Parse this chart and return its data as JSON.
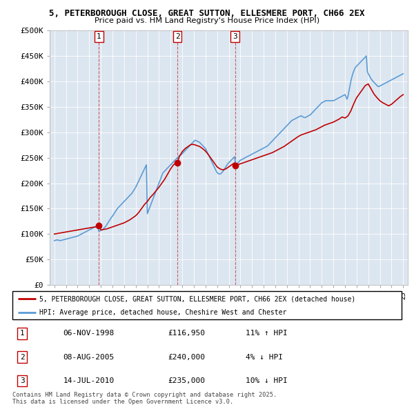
{
  "title_line1": "5, PETERBOROUGH CLOSE, GREAT SUTTON, ELLESMERE PORT, CH66 2EX",
  "title_line2": "Price paid vs. HM Land Registry's House Price Index (HPI)",
  "legend_line1": "5, PETERBOROUGH CLOSE, GREAT SUTTON, ELLESMERE PORT, CH66 2EX (detached house)",
  "legend_line2": "HPI: Average price, detached house, Cheshire West and Chester",
  "footer": "Contains HM Land Registry data © Crown copyright and database right 2025.\nThis data is licensed under the Open Government Licence v3.0.",
  "sale_table": [
    {
      "num": "1",
      "date": "06-NOV-1998",
      "price": "£116,950",
      "hpi": "11% ↑ HPI"
    },
    {
      "num": "2",
      "date": "08-AUG-2005",
      "price": "£240,000",
      "hpi": "4% ↓ HPI"
    },
    {
      "num": "3",
      "date": "14-JUL-2010",
      "price": "£235,000",
      "hpi": "10% ↓ HPI"
    }
  ],
  "hpi_color": "#5b9bd5",
  "price_color": "#c00000",
  "chart_bg": "#dce6f0",
  "ylim": [
    0,
    500000
  ],
  "yticks": [
    0,
    50000,
    100000,
    150000,
    200000,
    250000,
    300000,
    350000,
    400000,
    450000,
    500000
  ],
  "ytick_labels": [
    "£0",
    "£50K",
    "£100K",
    "£150K",
    "£200K",
    "£250K",
    "£300K",
    "£350K",
    "£400K",
    "£450K",
    "£500K"
  ],
  "sale_years": [
    1998.836,
    2005.583,
    2010.536
  ],
  "sale_prices": [
    116950,
    240000,
    235000
  ],
  "hpi_years": [
    1995.0,
    1995.083,
    1995.167,
    1995.25,
    1995.333,
    1995.417,
    1995.5,
    1995.583,
    1995.667,
    1995.75,
    1995.833,
    1995.917,
    1996.0,
    1996.083,
    1996.167,
    1996.25,
    1996.333,
    1996.417,
    1996.5,
    1996.583,
    1996.667,
    1996.75,
    1996.833,
    1996.917,
    1997.0,
    1997.083,
    1997.167,
    1997.25,
    1997.333,
    1997.417,
    1997.5,
    1997.583,
    1997.667,
    1997.75,
    1997.833,
    1997.917,
    1998.0,
    1998.083,
    1998.167,
    1998.25,
    1998.333,
    1998.417,
    1998.5,
    1998.583,
    1998.667,
    1998.75,
    1998.833,
    1998.917,
    1999.0,
    1999.083,
    1999.167,
    1999.25,
    1999.333,
    1999.417,
    1999.5,
    1999.583,
    1999.667,
    1999.75,
    1999.833,
    1999.917,
    2000.0,
    2000.083,
    2000.167,
    2000.25,
    2000.333,
    2000.417,
    2000.5,
    2000.583,
    2000.667,
    2000.75,
    2000.833,
    2000.917,
    2001.0,
    2001.083,
    2001.167,
    2001.25,
    2001.333,
    2001.417,
    2001.5,
    2001.583,
    2001.667,
    2001.75,
    2001.833,
    2001.917,
    2002.0,
    2002.083,
    2002.167,
    2002.25,
    2002.333,
    2002.417,
    2002.5,
    2002.583,
    2002.667,
    2002.75,
    2002.833,
    2002.917,
    2003.0,
    2003.083,
    2003.167,
    2003.25,
    2003.333,
    2003.417,
    2003.5,
    2003.583,
    2003.667,
    2003.75,
    2003.833,
    2003.917,
    2004.0,
    2004.083,
    2004.167,
    2004.25,
    2004.333,
    2004.417,
    2004.5,
    2004.583,
    2004.667,
    2004.75,
    2004.833,
    2004.917,
    2005.0,
    2005.083,
    2005.167,
    2005.25,
    2005.333,
    2005.417,
    2005.5,
    2005.583,
    2005.667,
    2005.75,
    2005.833,
    2005.917,
    2006.0,
    2006.083,
    2006.167,
    2006.25,
    2006.333,
    2006.417,
    2006.5,
    2006.583,
    2006.667,
    2006.75,
    2006.833,
    2006.917,
    2007.0,
    2007.083,
    2007.167,
    2007.25,
    2007.333,
    2007.417,
    2007.5,
    2007.583,
    2007.667,
    2007.75,
    2007.833,
    2007.917,
    2008.0,
    2008.083,
    2008.167,
    2008.25,
    2008.333,
    2008.417,
    2008.5,
    2008.583,
    2008.667,
    2008.75,
    2008.833,
    2008.917,
    2009.0,
    2009.083,
    2009.167,
    2009.25,
    2009.333,
    2009.417,
    2009.5,
    2009.583,
    2009.667,
    2009.75,
    2009.833,
    2009.917,
    2010.0,
    2010.083,
    2010.167,
    2010.25,
    2010.333,
    2010.417,
    2010.5,
    2010.583,
    2010.667,
    2010.75,
    2010.833,
    2010.917,
    2011.0,
    2011.083,
    2011.167,
    2011.25,
    2011.333,
    2011.417,
    2011.5,
    2011.583,
    2011.667,
    2011.75,
    2011.833,
    2011.917,
    2012.0,
    2012.083,
    2012.167,
    2012.25,
    2012.333,
    2012.417,
    2012.5,
    2012.583,
    2012.667,
    2012.75,
    2012.833,
    2012.917,
    2013.0,
    2013.083,
    2013.167,
    2013.25,
    2013.333,
    2013.417,
    2013.5,
    2013.583,
    2013.667,
    2013.75,
    2013.833,
    2013.917,
    2014.0,
    2014.083,
    2014.167,
    2014.25,
    2014.333,
    2014.417,
    2014.5,
    2014.583,
    2014.667,
    2014.75,
    2014.833,
    2014.917,
    2015.0,
    2015.083,
    2015.167,
    2015.25,
    2015.333,
    2015.417,
    2015.5,
    2015.583,
    2015.667,
    2015.75,
    2015.833,
    2015.917,
    2016.0,
    2016.083,
    2016.167,
    2016.25,
    2016.333,
    2016.417,
    2016.5,
    2016.583,
    2016.667,
    2016.75,
    2016.833,
    2016.917,
    2017.0,
    2017.083,
    2017.167,
    2017.25,
    2017.333,
    2017.417,
    2017.5,
    2017.583,
    2017.667,
    2017.75,
    2017.833,
    2017.917,
    2018.0,
    2018.083,
    2018.167,
    2018.25,
    2018.333,
    2018.417,
    2018.5,
    2018.583,
    2018.667,
    2018.75,
    2018.833,
    2018.917,
    2019.0,
    2019.083,
    2019.167,
    2019.25,
    2019.333,
    2019.417,
    2019.5,
    2019.583,
    2019.667,
    2019.75,
    2019.833,
    2019.917,
    2020.0,
    2020.083,
    2020.167,
    2020.25,
    2020.333,
    2020.417,
    2020.5,
    2020.583,
    2020.667,
    2020.75,
    2020.833,
    2020.917,
    2021.0,
    2021.083,
    2021.167,
    2021.25,
    2021.333,
    2021.417,
    2021.5,
    2021.583,
    2021.667,
    2021.75,
    2021.833,
    2021.917,
    2022.0,
    2022.083,
    2022.167,
    2022.25,
    2022.333,
    2022.417,
    2022.5,
    2022.583,
    2022.667,
    2022.75,
    2022.833,
    2022.917,
    2023.0,
    2023.083,
    2023.167,
    2023.25,
    2023.333,
    2023.417,
    2023.5,
    2023.583,
    2023.667,
    2023.75,
    2023.833,
    2023.917,
    2024.0,
    2024.083,
    2024.167,
    2024.25,
    2024.333,
    2024.417,
    2024.5,
    2024.583,
    2024.667,
    2024.75,
    2024.833,
    2024.917,
    2025.0
  ],
  "hpi_values": [
    87000,
    87500,
    88000,
    88500,
    88000,
    87500,
    87000,
    87500,
    88000,
    88500,
    89000,
    89500,
    90000,
    90500,
    91000,
    91500,
    92000,
    92500,
    93000,
    93500,
    94000,
    94500,
    95000,
    95500,
    96000,
    97000,
    98000,
    99000,
    100000,
    101000,
    102000,
    103000,
    104000,
    105000,
    106000,
    107000,
    108000,
    109000,
    110000,
    111000,
    112000,
    113000,
    113500,
    114000,
    114500,
    115000,
    105000,
    106000,
    107000,
    108000,
    109000,
    111000,
    113000,
    115000,
    118000,
    121000,
    124000,
    127000,
    130000,
    133000,
    135000,
    138000,
    141000,
    144000,
    147000,
    150000,
    152000,
    154000,
    156000,
    158000,
    160000,
    162000,
    164000,
    166000,
    168000,
    170000,
    172000,
    174000,
    176000,
    178000,
    180000,
    183000,
    186000,
    189000,
    192000,
    196000,
    200000,
    204000,
    208000,
    212000,
    216000,
    220000,
    224000,
    228000,
    232000,
    236000,
    140000,
    145000,
    150000,
    155000,
    160000,
    165000,
    170000,
    175000,
    180000,
    185000,
    190000,
    195000,
    200000,
    205000,
    210000,
    215000,
    220000,
    222000,
    224000,
    226000,
    228000,
    230000,
    232000,
    234000,
    236000,
    238000,
    240000,
    242000,
    244000,
    246000,
    248000,
    250000,
    252000,
    254000,
    255000,
    256000,
    258000,
    260000,
    262000,
    264000,
    266000,
    268000,
    270000,
    272000,
    274000,
    276000,
    278000,
    280000,
    282000,
    284000,
    284000,
    283000,
    282000,
    281000,
    280000,
    278000,
    276000,
    274000,
    272000,
    270000,
    268000,
    264000,
    260000,
    256000,
    252000,
    248000,
    244000,
    240000,
    236000,
    232000,
    228000,
    224000,
    221000,
    219000,
    218000,
    218000,
    219000,
    221000,
    223000,
    226000,
    229000,
    232000,
    235000,
    238000,
    240000,
    242000,
    244000,
    246000,
    248000,
    250000,
    252000,
    235000,
    237000,
    239000,
    241000,
    243000,
    245000,
    246000,
    247000,
    248000,
    249000,
    250000,
    251000,
    252000,
    253000,
    254000,
    255000,
    256000,
    257000,
    258000,
    259000,
    260000,
    261000,
    262000,
    263000,
    264000,
    265000,
    266000,
    267000,
    268000,
    269000,
    270000,
    271000,
    272000,
    273000,
    275000,
    277000,
    279000,
    281000,
    283000,
    285000,
    287000,
    289000,
    291000,
    293000,
    295000,
    297000,
    299000,
    301000,
    303000,
    305000,
    307000,
    309000,
    311000,
    313000,
    315000,
    317000,
    319000,
    321000,
    323000,
    324000,
    325000,
    326000,
    327000,
    328000,
    329000,
    330000,
    331000,
    332000,
    332000,
    331000,
    330000,
    329000,
    329000,
    330000,
    331000,
    332000,
    333000,
    334000,
    336000,
    338000,
    340000,
    342000,
    344000,
    346000,
    348000,
    350000,
    352000,
    354000,
    356000,
    358000,
    359000,
    360000,
    361000,
    362000,
    362000,
    362000,
    362000,
    362000,
    362000,
    362000,
    362000,
    362000,
    363000,
    364000,
    365000,
    366000,
    367000,
    368000,
    369000,
    370000,
    371000,
    372000,
    373000,
    374000,
    370000,
    365000,
    370000,
    380000,
    390000,
    400000,
    408000,
    415000,
    420000,
    425000,
    428000,
    430000,
    432000,
    434000,
    436000,
    438000,
    440000,
    442000,
    444000,
    446000,
    448000,
    450000,
    420000,
    415000,
    412000,
    408000,
    405000,
    402000,
    400000,
    398000,
    396000,
    394000,
    392000,
    390000,
    390000,
    391000,
    392000,
    393000,
    394000,
    395000,
    396000,
    397000,
    398000,
    399000,
    400000,
    401000,
    402000,
    403000,
    404000,
    405000,
    406000,
    407000,
    408000,
    409000,
    410000,
    411000,
    412000,
    413000,
    414000,
    415000,
    416000,
    417000,
    418000,
    419000,
    420000,
    421000,
    422000,
    423000,
    424000,
    425000,
    430000
  ],
  "price_years": [
    1995.0,
    1995.25,
    1995.5,
    1995.75,
    1996.0,
    1996.25,
    1996.5,
    1996.75,
    1997.0,
    1997.25,
    1997.5,
    1997.75,
    1998.0,
    1998.25,
    1998.5,
    1998.75,
    1998.836,
    1999.0,
    1999.25,
    1999.5,
    1999.75,
    2000.0,
    2000.25,
    2000.5,
    2000.75,
    2001.0,
    2001.25,
    2001.5,
    2001.75,
    2002.0,
    2002.25,
    2002.5,
    2002.75,
    2003.0,
    2003.25,
    2003.5,
    2003.75,
    2004.0,
    2004.25,
    2004.5,
    2004.75,
    2005.0,
    2005.25,
    2005.5,
    2005.583,
    2005.75,
    2006.0,
    2006.25,
    2006.5,
    2006.75,
    2007.0,
    2007.25,
    2007.5,
    2007.75,
    2008.0,
    2008.25,
    2008.5,
    2008.75,
    2009.0,
    2009.25,
    2009.5,
    2009.75,
    2010.0,
    2010.25,
    2010.5,
    2010.536,
    2010.75,
    2011.0,
    2011.25,
    2011.5,
    2011.75,
    2012.0,
    2012.25,
    2012.5,
    2012.75,
    2013.0,
    2013.25,
    2013.5,
    2013.75,
    2014.0,
    2014.25,
    2014.5,
    2014.75,
    2015.0,
    2015.25,
    2015.5,
    2015.75,
    2016.0,
    2016.25,
    2016.5,
    2016.75,
    2017.0,
    2017.25,
    2017.5,
    2017.75,
    2018.0,
    2018.25,
    2018.5,
    2018.75,
    2019.0,
    2019.25,
    2019.5,
    2019.75,
    2020.0,
    2020.25,
    2020.5,
    2020.75,
    2021.0,
    2021.25,
    2021.5,
    2021.75,
    2022.0,
    2022.25,
    2022.5,
    2022.75,
    2023.0,
    2023.25,
    2023.5,
    2023.75,
    2024.0,
    2024.25,
    2024.5,
    2024.75,
    2025.0
  ],
  "price_values": [
    100000,
    101000,
    102000,
    103000,
    104000,
    105000,
    106000,
    107000,
    108000,
    109000,
    110000,
    111000,
    112000,
    113000,
    114000,
    115000,
    116950,
    108000,
    109000,
    110000,
    112000,
    114000,
    116000,
    118000,
    120000,
    122000,
    125000,
    128000,
    132000,
    136000,
    142000,
    150000,
    158000,
    164000,
    172000,
    178000,
    185000,
    192000,
    200000,
    208000,
    218000,
    228000,
    236000,
    240000,
    240000,
    252000,
    262000,
    268000,
    272000,
    276000,
    276000,
    274000,
    272000,
    268000,
    263000,
    256000,
    248000,
    240000,
    232000,
    228000,
    226000,
    228000,
    232000,
    236000,
    240000,
    235000,
    236000,
    238000,
    240000,
    242000,
    244000,
    246000,
    248000,
    250000,
    252000,
    254000,
    256000,
    258000,
    260000,
    263000,
    266000,
    269000,
    272000,
    276000,
    280000,
    284000,
    288000,
    292000,
    295000,
    297000,
    299000,
    301000,
    303000,
    305000,
    308000,
    311000,
    314000,
    316000,
    318000,
    320000,
    323000,
    326000,
    330000,
    328000,
    332000,
    342000,
    356000,
    368000,
    376000,
    384000,
    392000,
    395000,
    385000,
    375000,
    368000,
    362000,
    358000,
    355000,
    352000,
    355000,
    360000,
    365000,
    370000,
    374000,
    378000,
    382000,
    385000,
    388000,
    390000
  ]
}
